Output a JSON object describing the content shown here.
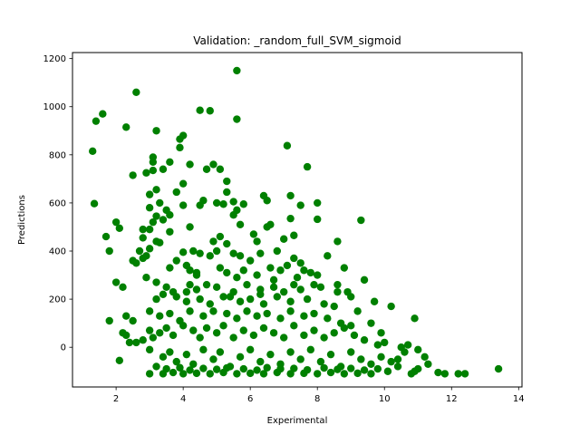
{
  "chart_data": {
    "type": "scatter",
    "title": "Validation: _random_full_SVM_sigmoid",
    "xlabel": "Experimental",
    "ylabel": "Predictions",
    "xlim": [
      0.7,
      14.1
    ],
    "ylim": [
      -165,
      1225
    ],
    "xticks": [
      2,
      4,
      6,
      8,
      10,
      12,
      14
    ],
    "yticks": [
      0,
      200,
      400,
      600,
      800,
      1000,
      1200
    ],
    "grid": false,
    "marker_color": "#008000",
    "series": [
      {
        "points": [
          [
            1.3,
            815
          ],
          [
            1.4,
            940
          ],
          [
            1.6,
            970
          ],
          [
            2.6,
            1060
          ],
          [
            2.3,
            915
          ],
          [
            5.6,
            1150
          ],
          [
            5.6,
            948
          ],
          [
            4.5,
            985
          ],
          [
            4.8,
            983
          ],
          [
            3.2,
            900
          ],
          [
            4.0,
            880
          ],
          [
            3.9,
            865
          ],
          [
            7.1,
            838
          ],
          [
            3.1,
            790
          ],
          [
            3.9,
            830
          ],
          [
            4.2,
            760
          ],
          [
            3.1,
            770
          ],
          [
            3.4,
            740
          ],
          [
            3.6,
            770
          ],
          [
            2.5,
            715
          ],
          [
            2.9,
            725
          ],
          [
            3.1,
            735
          ],
          [
            7.7,
            750
          ],
          [
            4.9,
            760
          ],
          [
            5.1,
            740
          ],
          [
            4.7,
            740
          ],
          [
            5.3,
            690
          ],
          [
            5.3,
            645
          ],
          [
            4.0,
            680
          ],
          [
            3.0,
            635
          ],
          [
            3.2,
            655
          ],
          [
            3.8,
            645
          ],
          [
            1.35,
            597
          ],
          [
            4.6,
            610
          ],
          [
            4.5,
            590
          ],
          [
            5.0,
            600
          ],
          [
            5.2,
            595
          ],
          [
            5.5,
            605
          ],
          [
            5.8,
            595
          ],
          [
            6.4,
            630
          ],
          [
            6.5,
            610
          ],
          [
            7.2,
            630
          ],
          [
            8.0,
            600
          ],
          [
            7.5,
            590
          ],
          [
            4.0,
            590
          ],
          [
            3.0,
            580
          ],
          [
            3.5,
            570
          ],
          [
            2.0,
            520
          ],
          [
            2.1,
            495
          ],
          [
            2.8,
            490
          ],
          [
            3.2,
            545
          ],
          [
            3.4,
            530
          ],
          [
            3.6,
            550
          ],
          [
            3.3,
            600
          ],
          [
            3.1,
            520
          ],
          [
            3.0,
            490
          ],
          [
            5.6,
            570
          ],
          [
            5.5,
            550
          ],
          [
            5.7,
            510
          ],
          [
            6.6,
            510
          ],
          [
            6.5,
            500
          ],
          [
            7.2,
            535
          ],
          [
            8.0,
            532
          ],
          [
            9.3,
            528
          ],
          [
            1.7,
            460
          ],
          [
            1.8,
            400
          ],
          [
            2.8,
            455
          ],
          [
            3.6,
            480
          ],
          [
            4.2,
            500
          ],
          [
            5.1,
            460
          ],
          [
            4.9,
            440
          ],
          [
            5.3,
            430
          ],
          [
            6.1,
            470
          ],
          [
            6.2,
            440
          ],
          [
            7.0,
            450
          ],
          [
            7.3,
            465
          ],
          [
            8.6,
            440
          ],
          [
            3.2,
            440
          ],
          [
            3.3,
            435
          ],
          [
            2.5,
            360
          ],
          [
            2.6,
            350
          ],
          [
            2.9,
            380
          ],
          [
            3.0,
            410
          ],
          [
            2.7,
            400
          ],
          [
            2.8,
            370
          ],
          [
            3.6,
            330
          ],
          [
            3.8,
            360
          ],
          [
            4.0,
            395
          ],
          [
            4.3,
            400
          ],
          [
            4.5,
            390
          ],
          [
            4.8,
            380
          ],
          [
            5.0,
            400
          ],
          [
            5.5,
            390
          ],
          [
            5.7,
            380
          ],
          [
            6.0,
            360
          ],
          [
            6.3,
            390
          ],
          [
            6.8,
            400
          ],
          [
            7.3,
            370
          ],
          [
            7.5,
            350
          ],
          [
            8.3,
            380
          ],
          [
            4.1,
            340
          ],
          [
            4.2,
            320
          ],
          [
            4.4,
            300
          ],
          [
            5.1,
            330
          ],
          [
            5.3,
            310
          ],
          [
            5.8,
            320
          ],
          [
            6.2,
            300
          ],
          [
            6.6,
            330
          ],
          [
            6.9,
            320
          ],
          [
            7.1,
            340
          ],
          [
            7.6,
            320
          ],
          [
            7.8,
            310
          ],
          [
            8.0,
            300
          ],
          [
            8.8,
            330
          ],
          [
            9.4,
            280
          ],
          [
            2.0,
            270
          ],
          [
            2.2,
            250
          ],
          [
            2.9,
            290
          ],
          [
            3.2,
            270
          ],
          [
            3.5,
            250
          ],
          [
            3.7,
            230
          ],
          [
            4.2,
            260
          ],
          [
            4.4,
            240
          ],
          [
            4.7,
            260
          ],
          [
            5.0,
            250
          ],
          [
            5.5,
            230
          ],
          [
            5.9,
            260
          ],
          [
            6.3,
            240
          ],
          [
            6.7,
            250
          ],
          [
            7.0,
            230
          ],
          [
            7.3,
            260
          ],
          [
            7.5,
            240
          ],
          [
            8.1,
            250
          ],
          [
            8.6,
            230
          ],
          [
            9.0,
            210
          ],
          [
            9.7,
            190
          ],
          [
            10.2,
            170
          ],
          [
            3.2,
            200
          ],
          [
            3.4,
            220
          ],
          [
            3.8,
            210
          ],
          [
            4.1,
            190
          ],
          [
            4.5,
            200
          ],
          [
            4.8,
            180
          ],
          [
            5.2,
            210
          ],
          [
            5.7,
            190
          ],
          [
            6.0,
            200
          ],
          [
            6.4,
            180
          ],
          [
            6.8,
            210
          ],
          [
            7.2,
            190
          ],
          [
            7.7,
            200
          ],
          [
            8.2,
            180
          ],
          [
            8.5,
            170
          ],
          [
            9.2,
            150
          ],
          [
            9.6,
            100
          ],
          [
            2.3,
            130
          ],
          [
            2.5,
            110
          ],
          [
            3.0,
            150
          ],
          [
            3.3,
            130
          ],
          [
            3.6,
            140
          ],
          [
            3.9,
            110
          ],
          [
            4.2,
            150
          ],
          [
            4.6,
            130
          ],
          [
            4.9,
            150
          ],
          [
            5.3,
            140
          ],
          [
            5.6,
            120
          ],
          [
            5.9,
            150
          ],
          [
            6.2,
            130
          ],
          [
            6.5,
            140
          ],
          [
            6.9,
            120
          ],
          [
            7.2,
            150
          ],
          [
            7.6,
            130
          ],
          [
            7.9,
            140
          ],
          [
            8.3,
            120
          ],
          [
            8.7,
            100
          ],
          [
            9.0,
            90
          ],
          [
            10.9,
            120
          ],
          [
            1.8,
            110
          ],
          [
            2.2,
            60
          ],
          [
            2.3,
            50
          ],
          [
            2.4,
            20
          ],
          [
            2.6,
            20
          ],
          [
            2.8,
            30
          ],
          [
            3.0,
            70
          ],
          [
            3.1,
            40
          ],
          [
            3.3,
            60
          ],
          [
            3.5,
            80
          ],
          [
            3.7,
            50
          ],
          [
            4.0,
            90
          ],
          [
            4.3,
            70
          ],
          [
            4.5,
            40
          ],
          [
            4.7,
            80
          ],
          [
            5.0,
            60
          ],
          [
            5.2,
            90
          ],
          [
            5.5,
            40
          ],
          [
            5.8,
            70
          ],
          [
            6.1,
            50
          ],
          [
            6.4,
            80
          ],
          [
            6.7,
            60
          ],
          [
            7.0,
            40
          ],
          [
            7.3,
            90
          ],
          [
            7.6,
            50
          ],
          [
            7.9,
            70
          ],
          [
            8.2,
            40
          ],
          [
            8.5,
            60
          ],
          [
            8.8,
            80
          ],
          [
            9.1,
            50
          ],
          [
            9.4,
            30
          ],
          [
            2.1,
            -55
          ],
          [
            3.0,
            -10
          ],
          [
            3.4,
            -40
          ],
          [
            3.6,
            -20
          ],
          [
            3.8,
            -60
          ],
          [
            4.1,
            -30
          ],
          [
            4.3,
            -70
          ],
          [
            4.6,
            -10
          ],
          [
            4.9,
            -50
          ],
          [
            5.1,
            -20
          ],
          [
            5.4,
            -80
          ],
          [
            5.7,
            -40
          ],
          [
            6.0,
            -10
          ],
          [
            6.3,
            -60
          ],
          [
            6.6,
            -30
          ],
          [
            6.9,
            -70
          ],
          [
            7.2,
            -20
          ],
          [
            7.5,
            -50
          ],
          [
            7.8,
            -10
          ],
          [
            8.1,
            -60
          ],
          [
            8.4,
            -30
          ],
          [
            8.7,
            -80
          ],
          [
            9.0,
            -20
          ],
          [
            9.3,
            -50
          ],
          [
            9.6,
            -70
          ],
          [
            9.9,
            -40
          ],
          [
            10.2,
            -60
          ],
          [
            10.5,
            0
          ],
          [
            10.7,
            10
          ],
          [
            11.3,
            -70
          ],
          [
            3.0,
            -110
          ],
          [
            3.4,
            -110
          ],
          [
            3.7,
            -105
          ],
          [
            4.0,
            -110
          ],
          [
            4.4,
            -108
          ],
          [
            4.8,
            -110
          ],
          [
            5.2,
            -105
          ],
          [
            5.6,
            -110
          ],
          [
            6.0,
            -108
          ],
          [
            6.4,
            -110
          ],
          [
            6.8,
            -105
          ],
          [
            7.2,
            -110
          ],
          [
            7.6,
            -108
          ],
          [
            8.0,
            -110
          ],
          [
            8.4,
            -105
          ],
          [
            8.8,
            -110
          ],
          [
            9.2,
            -108
          ],
          [
            9.6,
            -110
          ],
          [
            10.1,
            -100
          ],
          [
            10.8,
            -110
          ],
          [
            11.0,
            -90
          ],
          [
            11.6,
            -105
          ],
          [
            11.8,
            -110
          ],
          [
            12.2,
            -110
          ],
          [
            12.4,
            -110
          ],
          [
            13.4,
            -90
          ],
          [
            3.2,
            -80
          ],
          [
            3.5,
            -90
          ],
          [
            3.9,
            -85
          ],
          [
            4.2,
            -95
          ],
          [
            4.6,
            -88
          ],
          [
            5.0,
            -92
          ],
          [
            5.3,
            -86
          ],
          [
            5.8,
            -90
          ],
          [
            6.2,
            -95
          ],
          [
            6.5,
            -85
          ],
          [
            6.9,
            -90
          ],
          [
            7.3,
            -88
          ],
          [
            7.7,
            -94
          ],
          [
            8.2,
            -86
          ],
          [
            8.6,
            -92
          ],
          [
            9.0,
            -88
          ],
          [
            9.4,
            -95
          ],
          [
            9.8,
            -90
          ],
          [
            10.4,
            -80
          ],
          [
            10.9,
            -100
          ],
          [
            4.1,
            230
          ],
          [
            5.4,
            210
          ],
          [
            6.3,
            220
          ],
          [
            7.9,
            260
          ],
          [
            8.6,
            260
          ],
          [
            4.4,
            310
          ],
          [
            5.6,
            290
          ],
          [
            6.7,
            280
          ],
          [
            7.4,
            290
          ],
          [
            8.9,
            230
          ],
          [
            9.9,
            60
          ],
          [
            10.0,
            20
          ],
          [
            10.6,
            -20
          ],
          [
            9.8,
            10
          ],
          [
            10.4,
            -50
          ],
          [
            11.0,
            -10
          ],
          [
            11.2,
            -40
          ]
        ]
      }
    ]
  }
}
